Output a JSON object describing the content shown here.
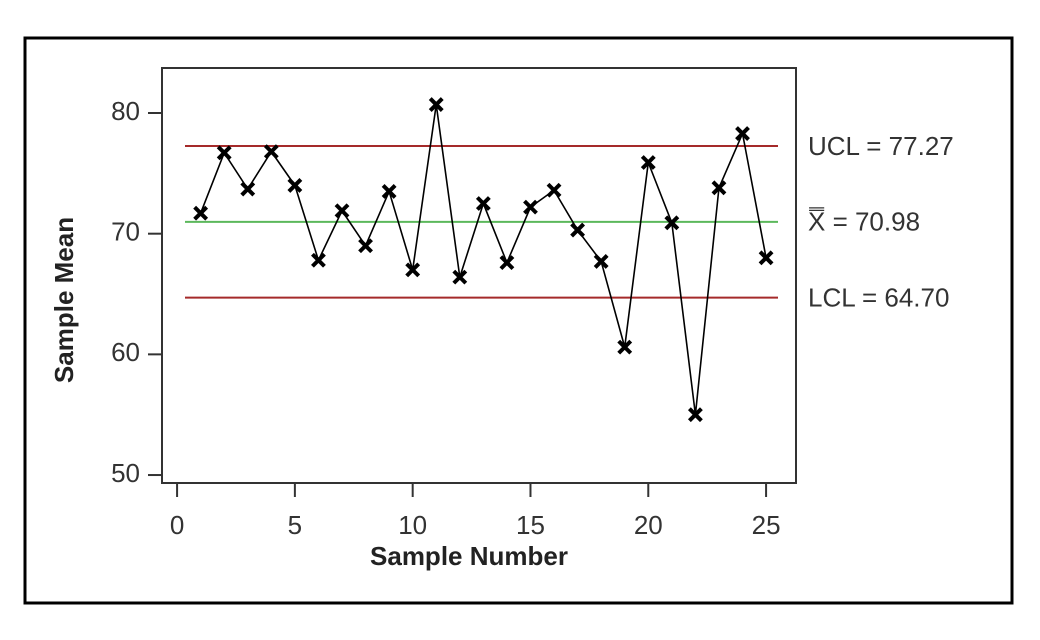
{
  "chart_data": {
    "type": "line",
    "x_label": "Sample Number",
    "y_label": "Sample Mean",
    "x": [
      1,
      2,
      3,
      4,
      5,
      6,
      7,
      8,
      9,
      10,
      11,
      12,
      13,
      14,
      15,
      16,
      17,
      18,
      19,
      20,
      21,
      22,
      23,
      24,
      25
    ],
    "series": [
      {
        "color": "#000000",
        "values": [
          71.7,
          76.7,
          73.7,
          76.8,
          74.0,
          67.8,
          71.9,
          69.0,
          73.5,
          67.0,
          80.7,
          66.4,
          72.5,
          67.6,
          72.2,
          73.6,
          70.3,
          67.7,
          60.6,
          75.9,
          70.9,
          55.0,
          73.8,
          78.3,
          68.0
        ]
      }
    ],
    "control_lines": [
      {
        "label": "UCL = 77.27",
        "value": 77.27,
        "color": "#a52a2a"
      },
      {
        "label": "X̿ = 70.98",
        "value": 70.98,
        "color": "#5cb85c"
      },
      {
        "label": "LCL = 64.70",
        "value": 64.7,
        "color": "#a52a2a"
      }
    ],
    "xlim": [
      -0.64,
      26.27
    ],
    "ylim": [
      49.34,
      83.73
    ],
    "xticks": [
      0,
      5,
      10,
      15,
      20,
      25
    ],
    "yticks": [
      50,
      60,
      70,
      80
    ]
  }
}
